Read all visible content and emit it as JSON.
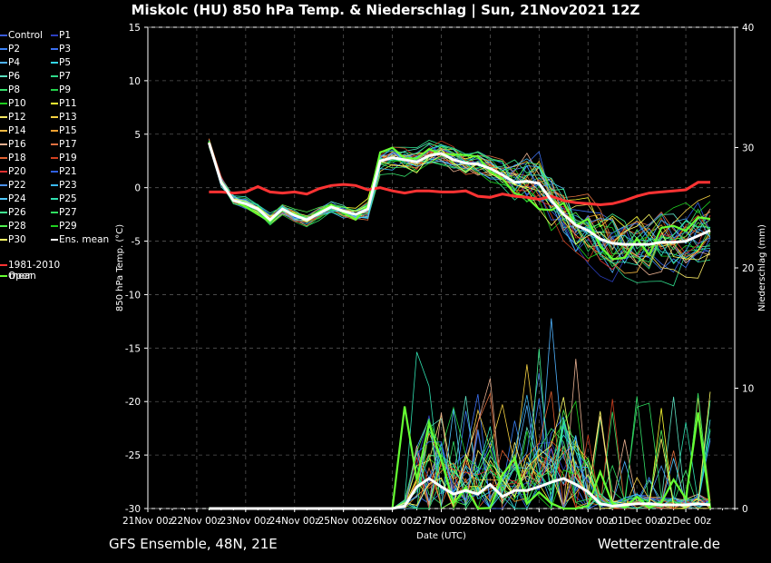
{
  "title": "Miskolc  (HU)  850 hPa Temp. & Niederschlag | Sun, 21Nov2021 12Z",
  "footer_left": "GFS Ensemble, 48N, 21E",
  "footer_right": "Wetterzentrale.de",
  "chart_data": {
    "type": "line",
    "xlabel": "Date (UTC)",
    "ylabel_left": "850 hPa Temp. (°C)",
    "ylabel_right": "Niederschlag (mm)",
    "ylim_left": [
      -30,
      15
    ],
    "ylim_right": [
      0,
      40
    ],
    "yticks_left": [
      "15",
      "10",
      "5",
      "0",
      "-5",
      "-10",
      "-15",
      "-20",
      "-25",
      "-30"
    ],
    "yticks_right": [
      "40",
      "30",
      "20",
      "10",
      "0"
    ],
    "xticks": [
      "21Nov 00z",
      "22Nov 00z",
      "23Nov 00z",
      "24Nov 00z",
      "25Nov 00z",
      "26Nov 00z",
      "27Nov 00z",
      "28Nov 00z",
      "29Nov 00z",
      "30Nov 00z",
      "01Dec 00z",
      "02Dec 00z"
    ],
    "grid": true,
    "legend_position": "left",
    "legend": [
      {
        "name": "Control",
        "color": "#3a5bd9"
      },
      {
        "name": "P1",
        "color": "#2c3fbf"
      },
      {
        "name": "P2",
        "color": "#3b82f6"
      },
      {
        "name": "P3",
        "color": "#3b6ff0"
      },
      {
        "name": "P4",
        "color": "#4fb3ff"
      },
      {
        "name": "P5",
        "color": "#33d6e6"
      },
      {
        "name": "P6",
        "color": "#5ce0c0"
      },
      {
        "name": "P7",
        "color": "#2fd98a"
      },
      {
        "name": "P8",
        "color": "#35e06a"
      },
      {
        "name": "P9",
        "color": "#22d04a"
      },
      {
        "name": "P10",
        "color": "#1ecc1e"
      },
      {
        "name": "P11",
        "color": "#ffff33"
      },
      {
        "name": "P12",
        "color": "#f5e663"
      },
      {
        "name": "P13",
        "color": "#f5d142"
      },
      {
        "name": "P14",
        "color": "#f5b942"
      },
      {
        "name": "P15",
        "color": "#f0a030"
      },
      {
        "name": "P16",
        "color": "#e8b090"
      },
      {
        "name": "P17",
        "color": "#e07040"
      },
      {
        "name": "P18",
        "color": "#e06030"
      },
      {
        "name": "P19",
        "color": "#d04020"
      },
      {
        "name": "P20",
        "color": "#e03030"
      },
      {
        "name": "P21",
        "color": "#3060e0"
      },
      {
        "name": "P22",
        "color": "#4a90e8"
      },
      {
        "name": "P23",
        "color": "#3ab8f0"
      },
      {
        "name": "P24",
        "color": "#50c8ff"
      },
      {
        "name": "P25",
        "color": "#30e0b0"
      },
      {
        "name": "P26",
        "color": "#40f090"
      },
      {
        "name": "P27",
        "color": "#30e060"
      },
      {
        "name": "P28",
        "color": "#50f050"
      },
      {
        "name": "P29",
        "color": "#20d020"
      },
      {
        "name": "P30",
        "color": "#ffff66"
      },
      {
        "name": "Ens. mean",
        "color": "#ffffff"
      },
      {
        "name": "1981-2010 mean",
        "color": "#ff3333"
      },
      {
        "name": "Oper",
        "color": "#66ff33"
      }
    ],
    "x_days": [
      0,
      0.25,
      0.5,
      0.75,
      1,
      1.25,
      1.5,
      1.75,
      2,
      2.25,
      2.5,
      2.75,
      3,
      3.25,
      3.5,
      3.75,
      4,
      4.25,
      4.5,
      4.75,
      5,
      5.25,
      5.5,
      5.75,
      6,
      6.25,
      6.5,
      6.75,
      7,
      7.25,
      7.5,
      7.75,
      8,
      8.25,
      8.5,
      8.75,
      9,
      9.25,
      9.5,
      9.75,
      10,
      10.25,
      10.5,
      10.75,
      11,
      11.25,
      11.5,
      11.75,
      12
    ],
    "series": [
      {
        "name": "Ens. mean",
        "kind": "temp",
        "values": [
          null,
          null,
          null,
          null,
          null,
          4.2,
          0.5,
          -1.2,
          -1.5,
          -2.0,
          -3.0,
          -2.0,
          -2.6,
          -3.0,
          -2.4,
          -1.8,
          -2.2,
          -2.5,
          -2.0,
          2.5,
          2.8,
          2.6,
          2.4,
          3.0,
          3.2,
          2.6,
          2.3,
          2.2,
          1.8,
          1.2,
          0.5,
          0.6,
          0.4,
          -1.2,
          -2.5,
          -3.5,
          -4.0,
          -4.8,
          -5.2,
          -5.3,
          -5.3,
          -5.3,
          -5.1,
          -5.1,
          -5.0,
          -4.5,
          -4.0,
          null,
          null
        ]
      },
      {
        "name": "1981-2010 mean",
        "kind": "temp",
        "values": [
          null,
          null,
          null,
          null,
          null,
          -0.4,
          -0.4,
          -0.5,
          -0.4,
          0.1,
          -0.4,
          -0.5,
          -0.4,
          -0.6,
          -0.1,
          0.2,
          0.3,
          0.2,
          -0.2,
          0.0,
          -0.3,
          -0.5,
          -0.3,
          -0.3,
          -0.4,
          -0.4,
          -0.3,
          -0.8,
          -0.9,
          -0.6,
          -0.8,
          -0.9,
          -1.1,
          -0.8,
          -1.2,
          -1.4,
          -1.5,
          -1.6,
          -1.5,
          -1.2,
          -0.8,
          -0.5,
          -0.4,
          -0.3,
          -0.2,
          0.5,
          0.5,
          null,
          null
        ]
      },
      {
        "name": "Ens. mean precip",
        "kind": "precip",
        "values": [
          null,
          null,
          null,
          null,
          null,
          0,
          0,
          0,
          0,
          0,
          0,
          0,
          0,
          0,
          0,
          0,
          0,
          0,
          0,
          0,
          0,
          0.2,
          1.8,
          2.5,
          1.8,
          1.2,
          1.5,
          1.2,
          2.0,
          1.0,
          1.5,
          1.5,
          1.8,
          2.2,
          2.5,
          2.0,
          1.4,
          0.4,
          0.2,
          0.3,
          0.4,
          0.4,
          0.3,
          0.3,
          0.3,
          0.4,
          0.3,
          null,
          null
        ]
      }
    ]
  }
}
